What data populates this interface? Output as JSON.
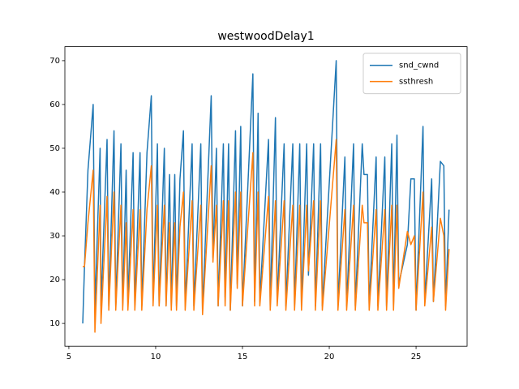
{
  "chart_data": {
    "type": "line",
    "title": "westwoodDelay1",
    "x": [
      5.8,
      5.9,
      6.1,
      6.4,
      6.5,
      6.8,
      6.85,
      7.2,
      7.3,
      7.6,
      7.7,
      8.0,
      8.1,
      8.3,
      8.4,
      8.7,
      8.8,
      9.1,
      9.2,
      9.5,
      9.75,
      9.85,
      10.1,
      10.2,
      10.5,
      10.6,
      10.8,
      10.9,
      11.1,
      11.2,
      11.4,
      11.6,
      11.7,
      12.1,
      12.2,
      12.6,
      12.7,
      13.2,
      13.3,
      13.5,
      13.6,
      13.9,
      14.0,
      14.2,
      14.3,
      14.6,
      14.7,
      14.9,
      15.0,
      15.6,
      15.7,
      15.9,
      16.0,
      16.5,
      16.6,
      16.9,
      17.0,
      17.4,
      17.5,
      17.9,
      18.0,
      18.3,
      18.4,
      18.7,
      18.8,
      19.1,
      19.2,
      19.5,
      19.6,
      20.4,
      20.5,
      20.9,
      21.0,
      21.4,
      21.5,
      21.9,
      22.0,
      22.2,
      22.3,
      22.7,
      22.8,
      23.2,
      23.3,
      23.6,
      23.7,
      23.9,
      24.0,
      24.5,
      24.7,
      24.9,
      25.0,
      25.4,
      25.5,
      25.9,
      26.0,
      26.4,
      26.6,
      26.7,
      26.9
    ],
    "series": [
      {
        "name": "snd_cwnd",
        "color": "#1f77b4",
        "values": [
          10,
          23,
          45,
          60,
          13,
          50,
          14,
          52,
          14,
          54,
          14,
          51,
          14,
          45,
          15,
          49,
          14,
          49,
          14,
          49,
          62,
          15,
          51,
          14,
          50,
          14,
          44,
          14,
          44,
          14,
          43,
          54,
          14,
          51,
          14,
          51,
          13,
          62,
          25,
          50,
          14,
          51,
          16,
          51,
          13,
          54,
          19,
          55,
          14,
          67,
          15,
          58,
          15,
          52,
          14,
          57,
          15,
          51,
          14,
          51,
          14,
          51,
          14,
          51,
          21,
          51,
          14,
          51,
          14,
          70,
          14,
          48,
          14,
          51,
          14,
          51,
          44,
          44,
          14,
          48,
          14,
          48,
          14,
          51,
          14,
          53,
          19,
          28,
          43,
          43,
          13,
          55,
          15,
          43,
          15,
          47,
          46,
          14,
          36
        ]
      },
      {
        "name": "ssthresh",
        "color": "#ff7f0e",
        "values": [
          23,
          23,
          33,
          45,
          8,
          37,
          10,
          39,
          13,
          40,
          13,
          37,
          13,
          33,
          13,
          36,
          13,
          36,
          13,
          36,
          46,
          14,
          37,
          14,
          37,
          14,
          33,
          13,
          33,
          13,
          32,
          40,
          13,
          38,
          13,
          37,
          12,
          46,
          24,
          37,
          14,
          38,
          14,
          38,
          13,
          40,
          18,
          40,
          14,
          49,
          14,
          40,
          14,
          39,
          13,
          38,
          14,
          38,
          13,
          37,
          13,
          37,
          13,
          37,
          22,
          38,
          13,
          38,
          13,
          52,
          13,
          36,
          13,
          37,
          13,
          37,
          33,
          33,
          13,
          36,
          13,
          36,
          13,
          37,
          13,
          37,
          18,
          31,
          28,
          30,
          13,
          40,
          14,
          32,
          15,
          34,
          30,
          13,
          27
        ]
      }
    ],
    "xlim": [
      4.77,
      27.94
    ],
    "ylim": [
      4.8,
      73.2
    ],
    "xticks": [
      5,
      10,
      15,
      20,
      25
    ],
    "yticks": [
      10,
      20,
      30,
      40,
      50,
      60,
      70
    ],
    "legend": "upper right"
  }
}
